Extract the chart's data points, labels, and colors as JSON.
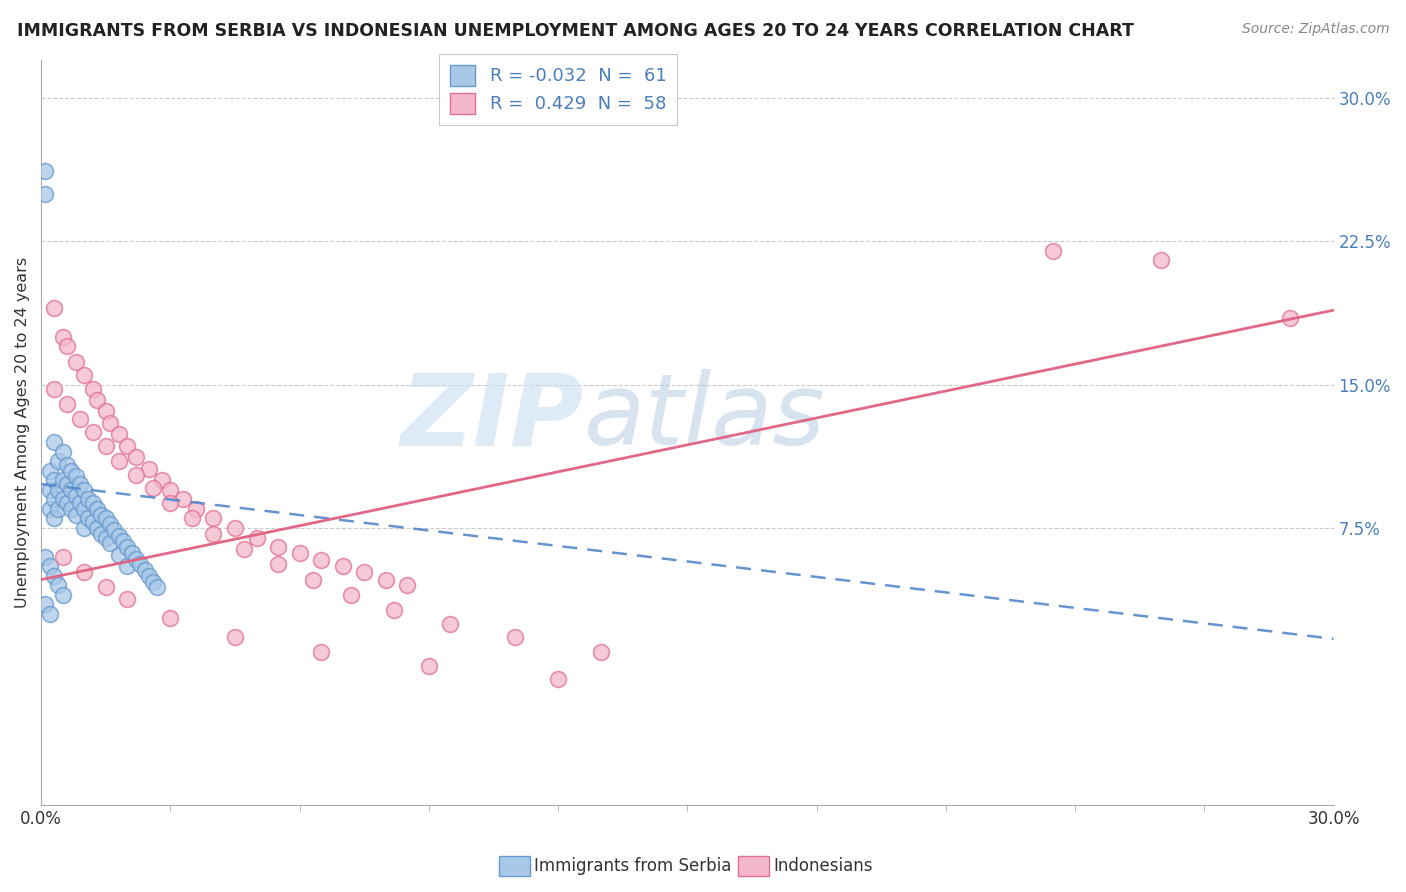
{
  "title": "IMMIGRANTS FROM SERBIA VS INDONESIAN UNEMPLOYMENT AMONG AGES 20 TO 24 YEARS CORRELATION CHART",
  "source": "Source: ZipAtlas.com",
  "ylabel": "Unemployment Among Ages 20 to 24 years",
  "right_yticks": [
    "30.0%",
    "22.5%",
    "15.0%",
    "7.5%"
  ],
  "right_ytick_vals": [
    0.3,
    0.225,
    0.15,
    0.075
  ],
  "xmin": 0.0,
  "xmax": 0.3,
  "ymin": -0.07,
  "ymax": 0.32,
  "watermark_zip": "ZIP",
  "watermark_atlas": "atlas",
  "serbia_color": "#a8c8e8",
  "serbia_edge": "#6699cc",
  "indonesia_color": "#f4b8cc",
  "indonesia_edge": "#e07090",
  "serbia_line_color": "#5588cc",
  "serbia_line_style": "--",
  "indonesia_line_color": "#e06080",
  "indonesia_line_style": "-",
  "serbia_intercept": 0.098,
  "serbia_slope": -0.27,
  "indonesia_intercept": 0.048,
  "indonesia_slope": 0.47,
  "legend_label_serbia": "R = -0.032  N =  61",
  "legend_label_indonesia": "R =  0.429  N =  58",
  "bottom_label_serbia": "Immigrants from Serbia",
  "bottom_label_indonesia": "Indonesians",
  "serbia_pts_x": [
    0.001,
    0.001,
    0.002,
    0.002,
    0.002,
    0.003,
    0.003,
    0.003,
    0.003,
    0.004,
    0.004,
    0.004,
    0.005,
    0.005,
    0.005,
    0.006,
    0.006,
    0.006,
    0.007,
    0.007,
    0.007,
    0.008,
    0.008,
    0.008,
    0.009,
    0.009,
    0.01,
    0.01,
    0.01,
    0.011,
    0.011,
    0.012,
    0.012,
    0.013,
    0.013,
    0.014,
    0.014,
    0.015,
    0.015,
    0.016,
    0.016,
    0.017,
    0.018,
    0.018,
    0.019,
    0.02,
    0.02,
    0.021,
    0.022,
    0.023,
    0.024,
    0.025,
    0.026,
    0.027,
    0.001,
    0.002,
    0.003,
    0.004,
    0.005,
    0.001,
    0.002
  ],
  "serbia_pts_y": [
    0.262,
    0.25,
    0.105,
    0.095,
    0.085,
    0.12,
    0.1,
    0.09,
    0.08,
    0.11,
    0.095,
    0.085,
    0.115,
    0.1,
    0.09,
    0.108,
    0.098,
    0.088,
    0.105,
    0.095,
    0.085,
    0.102,
    0.092,
    0.082,
    0.098,
    0.088,
    0.095,
    0.085,
    0.075,
    0.09,
    0.08,
    0.088,
    0.078,
    0.085,
    0.075,
    0.082,
    0.072,
    0.08,
    0.07,
    0.077,
    0.067,
    0.074,
    0.071,
    0.061,
    0.068,
    0.065,
    0.055,
    0.062,
    0.059,
    0.056,
    0.053,
    0.05,
    0.047,
    0.044,
    0.06,
    0.055,
    0.05,
    0.045,
    0.04,
    0.035,
    0.03
  ],
  "indo_pts_x": [
    0.003,
    0.005,
    0.006,
    0.008,
    0.01,
    0.012,
    0.013,
    0.015,
    0.016,
    0.018,
    0.02,
    0.022,
    0.025,
    0.028,
    0.03,
    0.033,
    0.036,
    0.04,
    0.045,
    0.05,
    0.055,
    0.06,
    0.065,
    0.07,
    0.075,
    0.08,
    0.085,
    0.003,
    0.006,
    0.009,
    0.012,
    0.015,
    0.018,
    0.022,
    0.026,
    0.03,
    0.035,
    0.04,
    0.047,
    0.055,
    0.063,
    0.072,
    0.082,
    0.095,
    0.11,
    0.13,
    0.26,
    0.005,
    0.01,
    0.015,
    0.02,
    0.03,
    0.045,
    0.065,
    0.09,
    0.12,
    0.29,
    0.235
  ],
  "indo_pts_y": [
    0.19,
    0.175,
    0.17,
    0.162,
    0.155,
    0.148,
    0.142,
    0.136,
    0.13,
    0.124,
    0.118,
    0.112,
    0.106,
    0.1,
    0.095,
    0.09,
    0.085,
    0.08,
    0.075,
    0.07,
    0.065,
    0.062,
    0.058,
    0.055,
    0.052,
    0.048,
    0.045,
    0.148,
    0.14,
    0.132,
    0.125,
    0.118,
    0.11,
    0.103,
    0.096,
    0.088,
    0.08,
    0.072,
    0.064,
    0.056,
    0.048,
    0.04,
    0.032,
    0.025,
    0.018,
    0.01,
    0.215,
    0.06,
    0.052,
    0.044,
    0.038,
    0.028,
    0.018,
    0.01,
    0.003,
    -0.004,
    0.185,
    0.22
  ]
}
